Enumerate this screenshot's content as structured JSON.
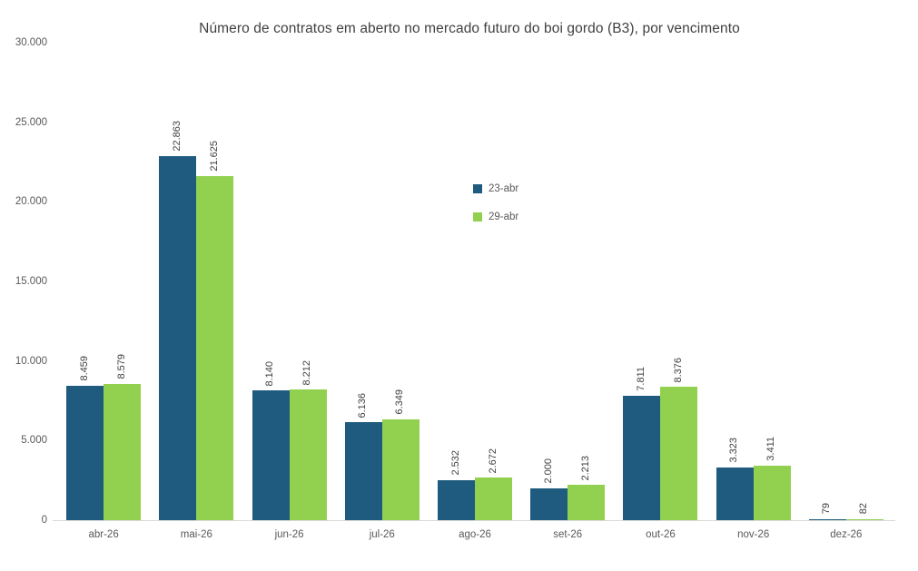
{
  "chart_data": {
    "type": "bar",
    "title": "Número de contratos em aberto no mercado futuro do boi gordo (B3), por vencimento",
    "categories": [
      "abr-26",
      "mai-26",
      "jun-26",
      "jul-26",
      "ago-26",
      "set-26",
      "out-26",
      "nov-26",
      "dez-26"
    ],
    "series": [
      {
        "name": "23-abr",
        "color": "#1e5b7e",
        "values": [
          8459,
          22863,
          8140,
          6136,
          2532,
          2000,
          7811,
          3323,
          79
        ],
        "labels": [
          "8.459",
          "22.863",
          "8.140",
          "6.136",
          "2.532",
          "2.000",
          "7.811",
          "3.323",
          "79"
        ]
      },
      {
        "name": "29-abr",
        "color": "#92d050",
        "values": [
          8579,
          21625,
          8212,
          6349,
          2672,
          2213,
          8376,
          3411,
          82
        ],
        "labels": [
          "8.579",
          "21.625",
          "8.212",
          "6.349",
          "2.672",
          "2.213",
          "8.376",
          "3.411",
          "82"
        ]
      }
    ],
    "ylim": [
      0,
      30000
    ],
    "yticks": [
      {
        "value": 0,
        "label": "0"
      },
      {
        "value": 5000,
        "label": "5.000"
      },
      {
        "value": 10000,
        "label": "10.000"
      },
      {
        "value": 15000,
        "label": "15.000"
      },
      {
        "value": 20000,
        "label": "20.000"
      },
      {
        "value": 25000,
        "label": "25.000"
      },
      {
        "value": 30000,
        "label": "30.000"
      }
    ],
    "grid": false,
    "legend_position": "center-right-upper",
    "value_label_style": "rotated-90-above-bars",
    "colors": {
      "axis_text": "#595959",
      "title_text": "#404040",
      "value_label_text": "#404040",
      "axis_line": "#d9d9d9",
      "background": "#ffffff"
    }
  }
}
